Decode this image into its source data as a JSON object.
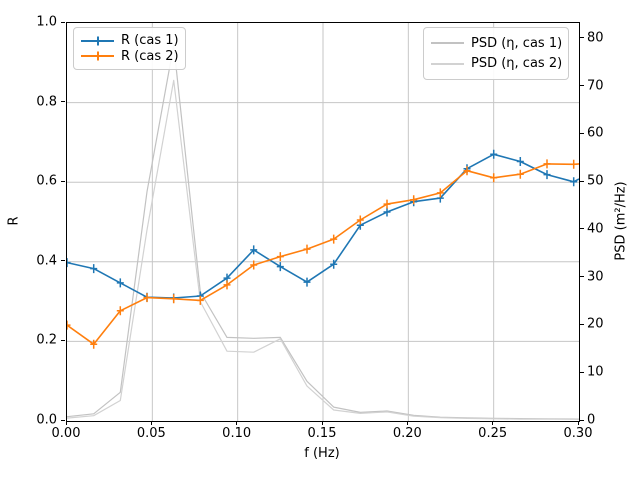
{
  "figure": {
    "background": "#ffffff"
  },
  "axes": {
    "xlabel": "f (Hz)",
    "ylabel_left": "R",
    "ylabel_right": "PSD (m²/Hz)",
    "xlim": [
      0.0,
      0.3
    ],
    "ylim_left": [
      0.0,
      1.0
    ],
    "ylim_right": [
      0.0,
      83.3
    ],
    "x_ticks": [
      {
        "v": 0.0,
        "label": "0.00"
      },
      {
        "v": 0.05,
        "label": "0.05"
      },
      {
        "v": 0.1,
        "label": "0.10"
      },
      {
        "v": 0.15,
        "label": "0.15"
      },
      {
        "v": 0.2,
        "label": "0.20"
      },
      {
        "v": 0.25,
        "label": "0.25"
      },
      {
        "v": 0.3,
        "label": "0.30"
      }
    ],
    "y_left_ticks": [
      {
        "v": 0.0,
        "label": "0.0"
      },
      {
        "v": 0.2,
        "label": "0.2"
      },
      {
        "v": 0.4,
        "label": "0.4"
      },
      {
        "v": 0.6,
        "label": "0.6"
      },
      {
        "v": 0.8,
        "label": "0.8"
      },
      {
        "v": 1.0,
        "label": "1.0"
      }
    ],
    "y_right_ticks": [
      {
        "v": 0,
        "label": "0"
      },
      {
        "v": 10,
        "label": "10"
      },
      {
        "v": 20,
        "label": "20"
      },
      {
        "v": 30,
        "label": "30"
      },
      {
        "v": 40,
        "label": "40"
      },
      {
        "v": 50,
        "label": "50"
      },
      {
        "v": 60,
        "label": "60"
      },
      {
        "v": 70,
        "label": "70"
      },
      {
        "v": 80,
        "label": "80"
      }
    ],
    "grid_color": "#c6c6c6"
  },
  "legend_left": {
    "items": [
      {
        "label": "R (cas 1)",
        "color": "#1f77b4"
      },
      {
        "label": "R (cas 2)",
        "color": "#ff7f0e"
      }
    ]
  },
  "legend_right": {
    "items": [
      {
        "label": "PSD (η, cas 1)",
        "color": "#c2c2c2"
      },
      {
        "label": "PSD (η, cas 2)",
        "color": "#d2d2d2"
      }
    ]
  },
  "chart_data": {
    "type": "line",
    "title": "",
    "xlabel": "f (Hz)",
    "ylabel_left": "R",
    "ylabel_right": "PSD (m²/Hz)",
    "xlim": [
      0.0,
      0.3
    ],
    "ylim_left": [
      0.0,
      1.0
    ],
    "ylim_right": [
      0.0,
      83.3
    ],
    "grid": true,
    "legend_positions": [
      "upper left",
      "upper right"
    ],
    "x": [
      0.0,
      0.015625,
      0.03125,
      0.046875,
      0.0625,
      0.078125,
      0.09375,
      0.109375,
      0.125,
      0.140625,
      0.15625,
      0.171875,
      0.1875,
      0.203125,
      0.21875,
      0.234375,
      0.25,
      0.265625,
      0.28125,
      0.296875
    ],
    "series": [
      {
        "name": "PSD (η, cas 1)",
        "axis": "right",
        "color": "#c2c2c2",
        "width": 1.2,
        "marker": false,
        "values": [
          0.9,
          1.5,
          6.0,
          48.0,
          78.7,
          27.0,
          17.5,
          17.3,
          17.5,
          8.3,
          2.9,
          1.8,
          2.1,
          1.2,
          0.8,
          0.65,
          0.55,
          0.5,
          0.45,
          0.42
        ],
        "edge_value": 0.4
      },
      {
        "name": "PSD (η, cas 2)",
        "axis": "right",
        "color": "#d2d2d2",
        "width": 1.2,
        "marker": false,
        "values": [
          0.6,
          1.1,
          4.3,
          40.0,
          71.3,
          25.0,
          14.6,
          14.4,
          17.2,
          7.3,
          2.3,
          1.6,
          1.9,
          1.0,
          0.7,
          0.55,
          0.45,
          0.4,
          0.38,
          0.35
        ],
        "edge_value": 0.33
      },
      {
        "name": "R (cas 1)",
        "axis": "left",
        "color": "#1f77b4",
        "width": 1.6,
        "marker": true,
        "values": [
          0.398,
          0.383,
          0.347,
          0.311,
          0.309,
          0.314,
          0.359,
          0.43,
          0.388,
          0.349,
          0.394,
          0.492,
          0.525,
          0.551,
          0.56,
          0.634,
          0.67,
          0.652,
          0.619,
          0.601
        ],
        "edge_value": 0.608
      },
      {
        "name": "R (cas 2)",
        "axis": "left",
        "color": "#ff7f0e",
        "width": 1.6,
        "marker": true,
        "values": [
          0.241,
          0.193,
          0.277,
          0.31,
          0.307,
          0.303,
          0.342,
          0.392,
          0.413,
          0.432,
          0.457,
          0.505,
          0.545,
          0.556,
          0.573,
          0.629,
          0.611,
          0.62,
          0.646,
          0.645
        ],
        "edge_value": 0.646
      }
    ]
  }
}
